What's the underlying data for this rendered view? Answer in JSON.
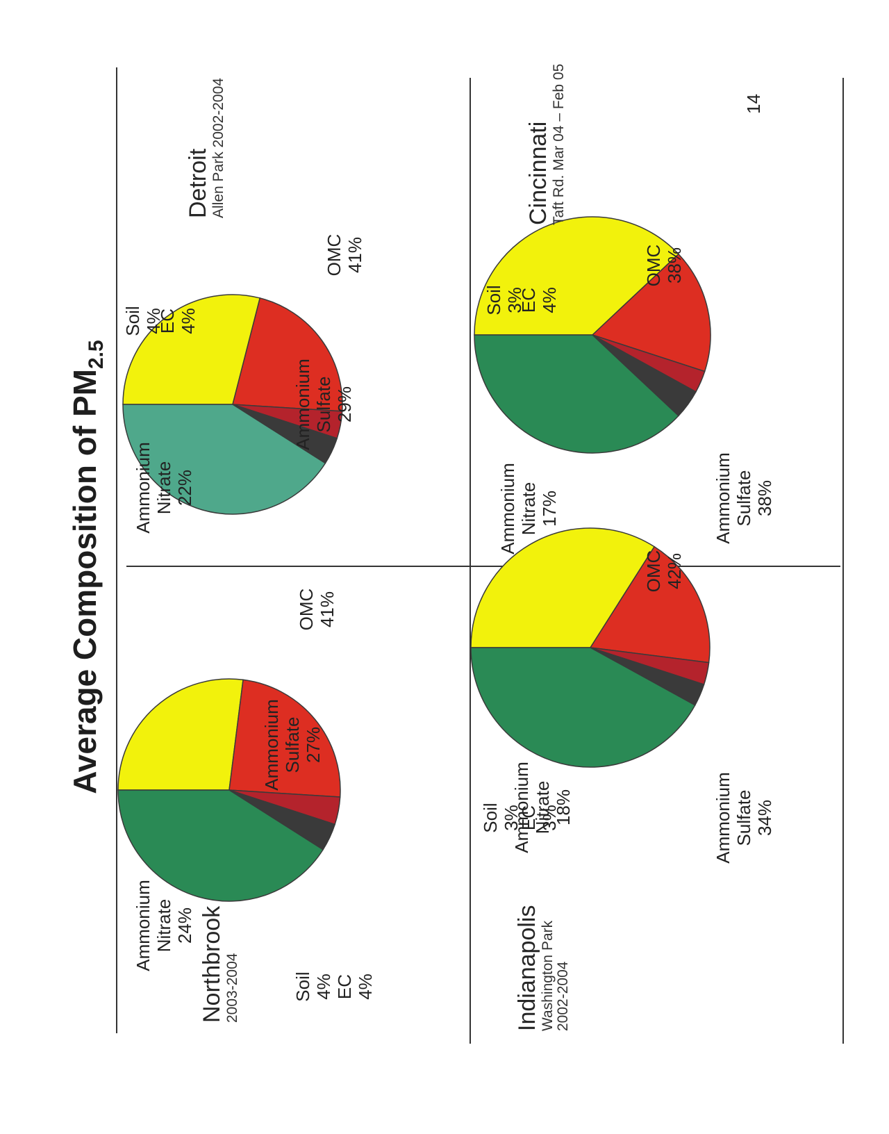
{
  "title": "Average Composition of PM",
  "title_sub": "2.5",
  "page_number": "14",
  "colors": {
    "ammonium_sulfate": "#f2f20c",
    "ammonium_nitrate": "#dd2e22",
    "soil": "#b4232c",
    "ec": "#3a3a3a",
    "omc_dark": "#2a8a55",
    "omc_teal": "#4fa88b"
  },
  "chart_data": [
    {
      "type": "pie",
      "site": "Northbrook",
      "site_detail": [
        "2003-2004"
      ],
      "labels": [
        [
          "Ammonium",
          "Sulfate"
        ],
        [
          "Ammonium",
          "Nitrate"
        ],
        [
          "Soil"
        ],
        [
          "EC"
        ],
        [
          "OMC"
        ]
      ],
      "values": [
        27,
        24,
        4,
        4,
        41
      ],
      "value_labels": [
        "27%",
        "24%",
        "4%",
        "4%",
        "41%"
      ]
    },
    {
      "type": "pie",
      "site": "Detroit",
      "site_detail": [
        "Allen Park 2002-2004"
      ],
      "labels": [
        [
          "Ammonium",
          "Sulfate"
        ],
        [
          "Ammonium",
          "Nitrate"
        ],
        [
          "Soil"
        ],
        [
          "EC"
        ],
        [
          "OMC"
        ]
      ],
      "values": [
        29,
        22,
        4,
        4,
        41
      ],
      "value_labels": [
        "29%",
        "22%",
        "4%",
        "4%",
        "41%"
      ]
    },
    {
      "type": "pie",
      "site": "Indianapolis",
      "site_detail": [
        "Washington Park",
        "2002-2004"
      ],
      "labels": [
        [
          "Ammonium",
          "Sulfate"
        ],
        [
          "Ammonium",
          "Nitrate"
        ],
        [
          "Soil"
        ],
        [
          "EC"
        ],
        [
          "OMC"
        ]
      ],
      "values": [
        34,
        18,
        3,
        3,
        42
      ],
      "value_labels": [
        "34%",
        "18%",
        "3%",
        "3%",
        "42%"
      ]
    },
    {
      "type": "pie",
      "site": "Cincinnati",
      "site_detail": [
        "Taft Rd. Mar 04 – Feb 05"
      ],
      "labels": [
        [
          "Ammonium",
          "Sulfate"
        ],
        [
          "Ammonium",
          "Nitrate"
        ],
        [
          "Soil"
        ],
        [
          "EC"
        ],
        [
          "OMC"
        ]
      ],
      "values": [
        38,
        17,
        3,
        4,
        38
      ],
      "value_labels": [
        "38%",
        "17%",
        "3%",
        "4%",
        "38%"
      ]
    }
  ]
}
